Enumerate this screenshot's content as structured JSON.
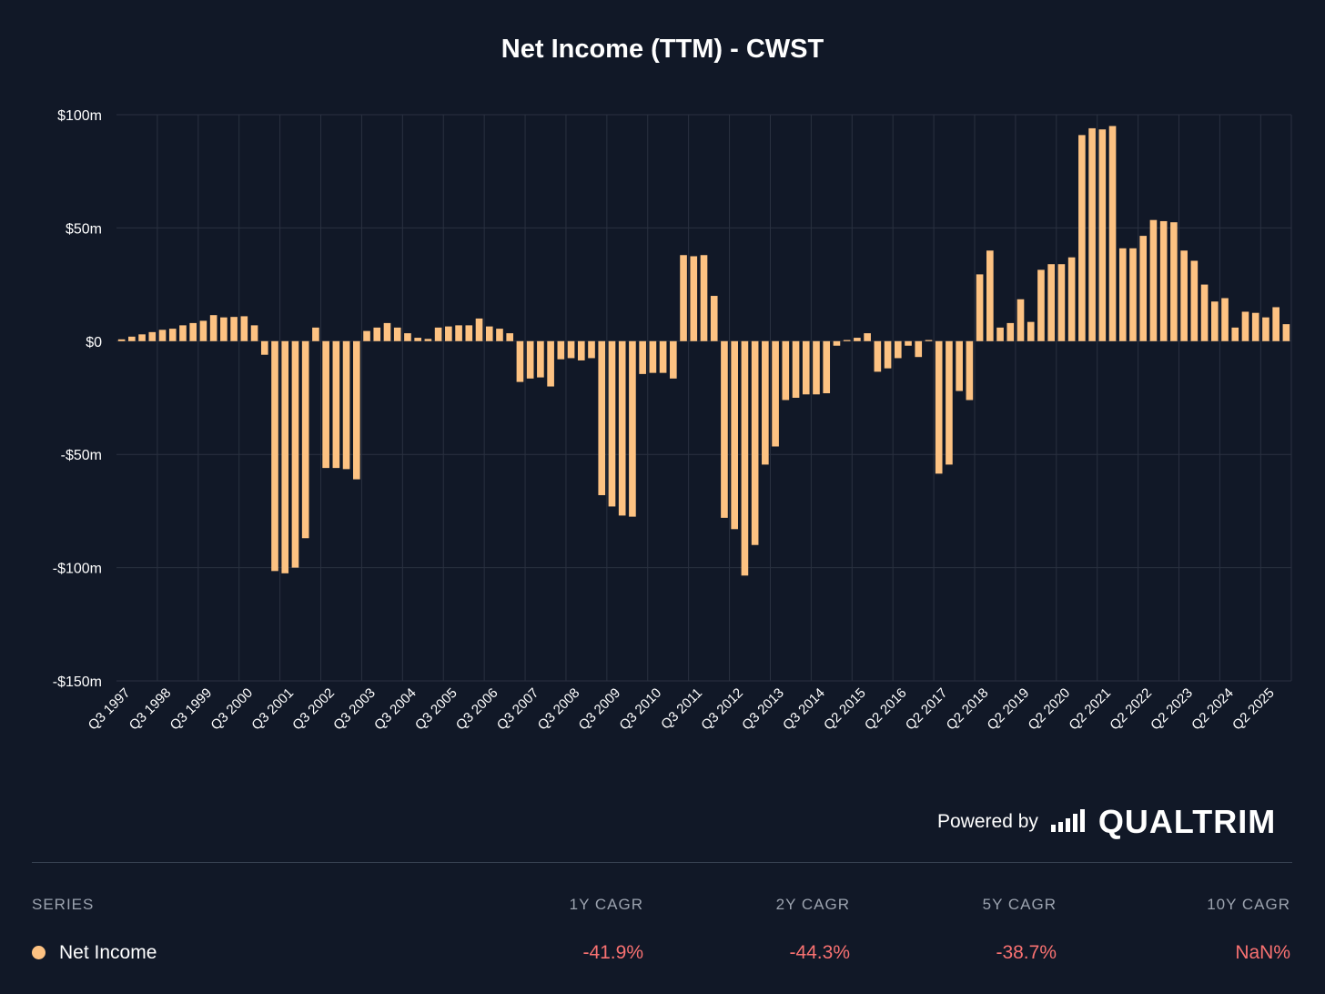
{
  "colors": {
    "background": "#111827",
    "bar": "#fdc282",
    "grid": "#2a3140",
    "negative": "#f87171",
    "muted": "#9ca3af"
  },
  "chart_data": {
    "type": "bar",
    "title": "Net Income (TTM) - CWST",
    "xlabel": "",
    "ylabel": "",
    "ylim": [
      -150,
      100
    ],
    "y_ticks": [
      {
        "value": 100,
        "label": "$100m"
      },
      {
        "value": 50,
        "label": "$50m"
      },
      {
        "value": 0,
        "label": "$0"
      },
      {
        "value": -50,
        "label": "-$50m"
      },
      {
        "value": -100,
        "label": "-$100m"
      },
      {
        "value": -150,
        "label": "-$150m"
      }
    ],
    "x_tick_labels": [
      {
        "index": 0,
        "label": "Q3 1997"
      },
      {
        "index": 4,
        "label": "Q3 1998"
      },
      {
        "index": 8,
        "label": "Q3 1999"
      },
      {
        "index": 12,
        "label": "Q3 2000"
      },
      {
        "index": 16,
        "label": "Q3 2001"
      },
      {
        "index": 20,
        "label": "Q3 2002"
      },
      {
        "index": 24,
        "label": "Q3 2003"
      },
      {
        "index": 28,
        "label": "Q3 2004"
      },
      {
        "index": 32,
        "label": "Q3 2005"
      },
      {
        "index": 36,
        "label": "Q3 2006"
      },
      {
        "index": 40,
        "label": "Q3 2007"
      },
      {
        "index": 44,
        "label": "Q3 2008"
      },
      {
        "index": 48,
        "label": "Q3 2009"
      },
      {
        "index": 52,
        "label": "Q3 2010"
      },
      {
        "index": 56,
        "label": "Q3 2011"
      },
      {
        "index": 60,
        "label": "Q3 2012"
      },
      {
        "index": 64,
        "label": "Q3 2013"
      },
      {
        "index": 68,
        "label": "Q3 2014"
      },
      {
        "index": 72,
        "label": "Q2 2015"
      },
      {
        "index": 76,
        "label": "Q2 2016"
      },
      {
        "index": 80,
        "label": "Q2 2017"
      },
      {
        "index": 84,
        "label": "Q2 2018"
      },
      {
        "index": 88,
        "label": "Q2 2019"
      },
      {
        "index": 92,
        "label": "Q2 2020"
      },
      {
        "index": 96,
        "label": "Q2 2021"
      },
      {
        "index": 100,
        "label": "Q2 2022"
      },
      {
        "index": 104,
        "label": "Q2 2023"
      },
      {
        "index": 108,
        "label": "Q2 2024"
      },
      {
        "index": 112,
        "label": "Q2 2025"
      }
    ],
    "series": [
      {
        "name": "Net Income",
        "values": [
          0.8,
          2,
          3,
          4,
          5,
          5.5,
          7,
          8,
          9,
          11.5,
          10.5,
          10.7,
          11,
          7,
          -6,
          -101.5,
          -102.5,
          -100,
          -87,
          6,
          -56,
          -56,
          -56.5,
          -61,
          4.5,
          6,
          8,
          6,
          3.5,
          1.5,
          1,
          6,
          6.5,
          7,
          7,
          10,
          6.5,
          5.5,
          3.5,
          -18,
          -16.5,
          -16,
          -20,
          -8,
          -7.5,
          -8.5,
          -7.5,
          -68,
          -73,
          -77,
          -77.5,
          -14.5,
          -14,
          -14,
          -16.5,
          38,
          37.5,
          38,
          20,
          -78,
          -83,
          -103.5,
          -90,
          -54.5,
          -46.5,
          -26,
          -25,
          -23.5,
          -23.5,
          -23,
          -2,
          0.5,
          1.5,
          3.5,
          -13.5,
          -12,
          -7.5,
          -2,
          -7,
          0.5,
          -58.5,
          -54.5,
          -22,
          -26,
          29.5,
          40,
          6,
          8,
          18.5,
          8.5,
          31.5,
          34,
          34,
          37,
          91,
          94,
          93.5,
          95,
          41,
          41,
          46.5,
          53.5,
          53,
          52.5,
          40,
          35.5,
          25,
          17.5,
          19,
          6,
          13,
          12.5,
          10.5,
          15,
          7.5
        ]
      }
    ],
    "grid": true,
    "legend": "none"
  },
  "branding": {
    "powered_by": "Powered by",
    "brand": "QUALTRIM",
    "icon": "bar-chart-logo-icon"
  },
  "table": {
    "headers": {
      "series": "SERIES",
      "y1": "1Y CAGR",
      "y2": "2Y CAGR",
      "y5": "5Y CAGR",
      "y10": "10Y CAGR"
    },
    "rows": [
      {
        "name": "Net Income",
        "y1": "-41.9%",
        "y2": "-44.3%",
        "y5": "-38.7%",
        "y10": "NaN%"
      }
    ]
  }
}
